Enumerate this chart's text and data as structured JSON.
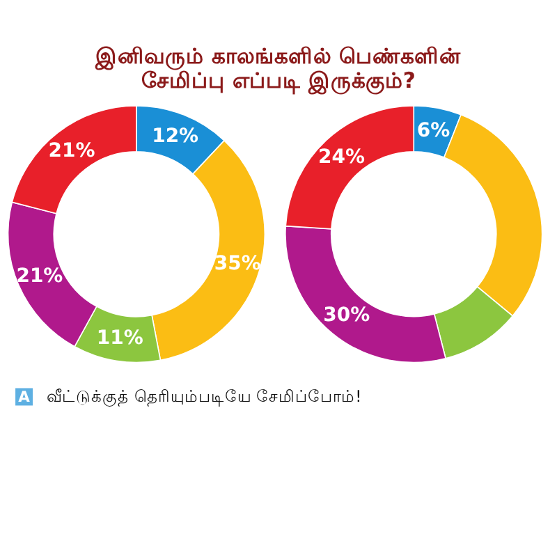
{
  "chart_data": [
    {
      "type": "donut",
      "title": [
        "இனிவரும் காலங்களில் பெண்களின்",
        "சேமிப்பு எப்படி இருக்கும்?"
      ],
      "categories": [
        null,
        null,
        null,
        null,
        null
      ],
      "values": [
        12,
        35,
        11,
        21,
        21
      ],
      "colors": [
        "#1a8fd6",
        "#fbbd14",
        "#8cc63f",
        "#b0198c",
        "#e8202a"
      ],
      "value_labels": [
        "12%",
        "35%",
        "11%",
        "21%",
        "21%"
      ],
      "annotations": [
        "A",
        "வீட்டுக்குத் தெரியும்படியே சேமிப்போம்!"
      ]
    },
    {
      "type": "donut",
      "categories": [
        null,
        null,
        null,
        null,
        null
      ],
      "values": [
        6,
        30,
        10,
        30,
        24
      ],
      "colors": [
        "#1a8fd6",
        "#fbbd14",
        "#8cc63f",
        "#b0198c",
        "#e8202a"
      ],
      "value_labels": [
        "6%",
        null,
        null,
        "30%",
        "24%"
      ]
    }
  ]
}
